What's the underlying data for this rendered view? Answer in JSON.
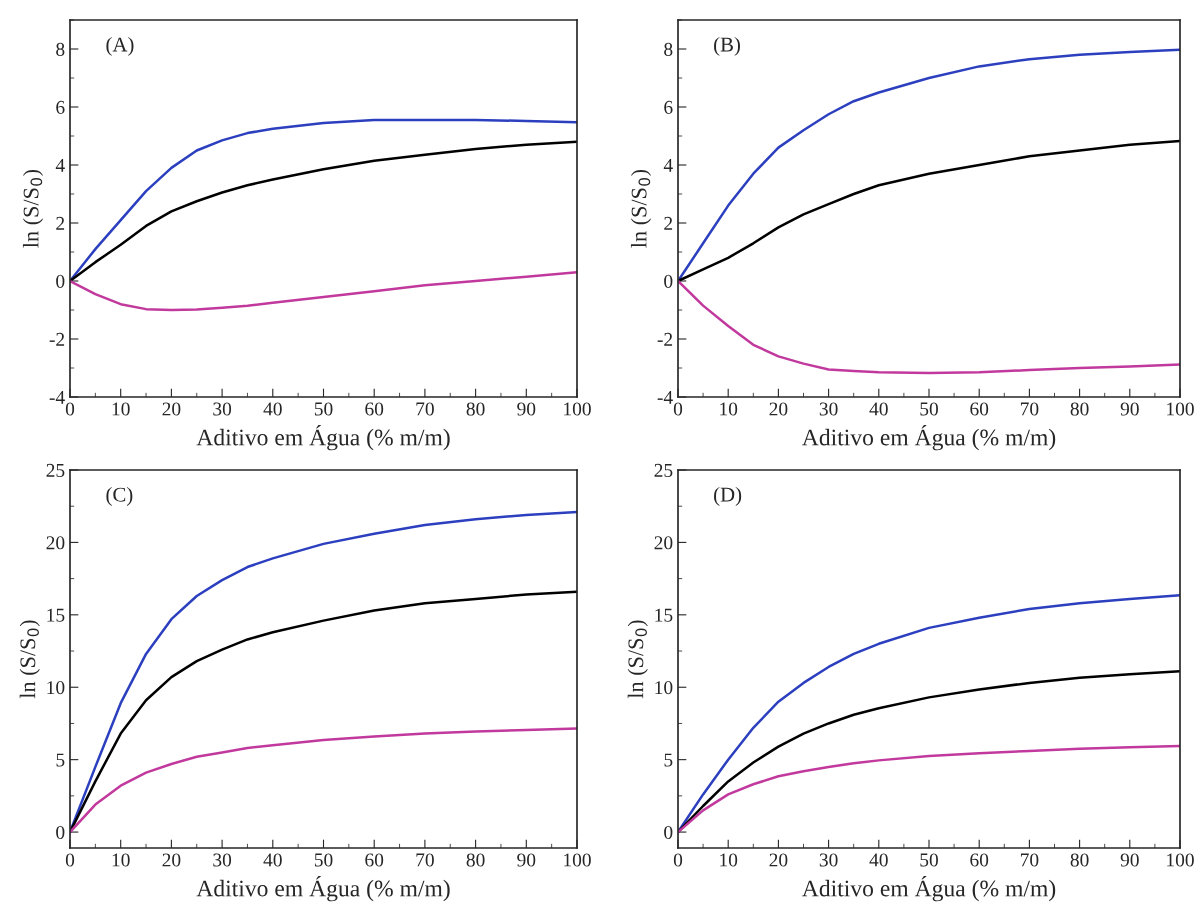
{
  "chart_data": [
    {
      "type": "line",
      "xlabel": "Aditivo em Água (% m/m)",
      "ylabel": "ln (S/S$_{0}$)",
      "annotations": [
        "(A)"
      ],
      "x": [
        0,
        5,
        10,
        15,
        20,
        25,
        30,
        35,
        40,
        50,
        60,
        70,
        80,
        90,
        100
      ],
      "xlim": [
        0,
        100
      ],
      "xticks": [
        0,
        10,
        20,
        30,
        40,
        50,
        60,
        70,
        80,
        90,
        100
      ],
      "ylim": [
        -4,
        9
      ],
      "yticks": [
        -4,
        -2,
        0,
        2,
        4,
        6,
        8
      ],
      "grid": false,
      "marker": "none",
      "line_style": "solid",
      "series": [
        {
          "color": "#2b3fbf",
          "values": [
            0,
            1.1,
            2.1,
            3.1,
            3.9,
            4.5,
            4.85,
            5.1,
            5.25,
            5.45,
            5.55,
            5.55,
            5.55,
            5.52,
            5.47
          ]
        },
        {
          "color": "#000000",
          "values": [
            0,
            0.65,
            1.25,
            1.9,
            2.4,
            2.75,
            3.05,
            3.3,
            3.5,
            3.85,
            4.15,
            4.35,
            4.55,
            4.7,
            4.8
          ]
        },
        {
          "color": "#c2399e",
          "values": [
            0,
            -0.45,
            -0.8,
            -0.97,
            -1.0,
            -0.98,
            -0.92,
            -0.85,
            -0.75,
            -0.55,
            -0.35,
            -0.15,
            0.0,
            0.15,
            0.3
          ]
        }
      ]
    },
    {
      "type": "line",
      "xlabel": "Aditivo em Água (% m/m)",
      "ylabel": "ln (S/S$_{0}$)",
      "annotations": [
        "(B)"
      ],
      "x": [
        0,
        5,
        10,
        15,
        20,
        25,
        30,
        35,
        40,
        50,
        60,
        70,
        80,
        90,
        100
      ],
      "xlim": [
        0,
        100
      ],
      "xticks": [
        0,
        10,
        20,
        30,
        40,
        50,
        60,
        70,
        80,
        90,
        100
      ],
      "ylim": [
        -4,
        9
      ],
      "yticks": [
        -4,
        -2,
        0,
        2,
        4,
        6,
        8
      ],
      "grid": false,
      "marker": "none",
      "line_style": "solid",
      "series": [
        {
          "color": "#2b3fbf",
          "values": [
            0,
            1.3,
            2.6,
            3.7,
            4.6,
            5.2,
            5.75,
            6.2,
            6.5,
            7.0,
            7.4,
            7.65,
            7.8,
            7.9,
            7.97
          ]
        },
        {
          "color": "#000000",
          "values": [
            0,
            0.4,
            0.8,
            1.3,
            1.85,
            2.3,
            2.65,
            3.0,
            3.3,
            3.7,
            4.0,
            4.3,
            4.5,
            4.7,
            4.83
          ]
        },
        {
          "color": "#c2399e",
          "values": [
            0,
            -0.85,
            -1.55,
            -2.2,
            -2.6,
            -2.85,
            -3.05,
            -3.1,
            -3.15,
            -3.17,
            -3.15,
            -3.07,
            -3.0,
            -2.95,
            -2.88
          ]
        }
      ]
    },
    {
      "type": "line",
      "xlabel": "Aditivo em Água (% m/m)",
      "ylabel": "ln (S/S$_{0}$)",
      "annotations": [
        "(C)"
      ],
      "x": [
        0,
        5,
        10,
        15,
        20,
        25,
        30,
        35,
        40,
        50,
        60,
        70,
        80,
        90,
        100
      ],
      "xlim": [
        0,
        100
      ],
      "xticks": [
        0,
        10,
        20,
        30,
        40,
        50,
        60,
        70,
        80,
        90,
        100
      ],
      "ylim": [
        -1.1,
        25
      ],
      "yticks": [
        0,
        5,
        10,
        15,
        20,
        25
      ],
      "grid": false,
      "marker": "none",
      "line_style": "solid",
      "series": [
        {
          "color": "#2b3fbf",
          "values": [
            0,
            4.5,
            8.9,
            12.3,
            14.7,
            16.3,
            17.4,
            18.3,
            18.9,
            19.9,
            20.6,
            21.2,
            21.6,
            21.9,
            22.1
          ]
        },
        {
          "color": "#000000",
          "values": [
            0,
            3.5,
            6.8,
            9.1,
            10.7,
            11.8,
            12.6,
            13.3,
            13.8,
            14.6,
            15.3,
            15.8,
            16.1,
            16.4,
            16.6
          ]
        },
        {
          "color": "#c2399e",
          "values": [
            0,
            1.9,
            3.2,
            4.1,
            4.7,
            5.2,
            5.5,
            5.8,
            6.0,
            6.35,
            6.6,
            6.8,
            6.95,
            7.05,
            7.15
          ]
        }
      ]
    },
    {
      "type": "line",
      "xlabel": "Aditivo em Água (% m/m)",
      "ylabel": "ln (S/S$_{0}$)",
      "annotations": [
        "(D)"
      ],
      "x": [
        0,
        5,
        10,
        15,
        20,
        25,
        30,
        35,
        40,
        50,
        60,
        70,
        80,
        90,
        100
      ],
      "xlim": [
        0,
        100
      ],
      "xticks": [
        0,
        10,
        20,
        30,
        40,
        50,
        60,
        70,
        80,
        90,
        100
      ],
      "ylim": [
        -1.1,
        25
      ],
      "yticks": [
        0,
        5,
        10,
        15,
        20,
        25
      ],
      "grid": false,
      "marker": "none",
      "line_style": "solid",
      "series": [
        {
          "color": "#2b3fbf",
          "values": [
            0,
            2.6,
            5.0,
            7.2,
            9.0,
            10.3,
            11.4,
            12.3,
            13.0,
            14.1,
            14.8,
            15.4,
            15.8,
            16.1,
            16.35
          ]
        },
        {
          "color": "#000000",
          "values": [
            0,
            1.8,
            3.5,
            4.8,
            5.9,
            6.8,
            7.5,
            8.1,
            8.55,
            9.3,
            9.85,
            10.3,
            10.65,
            10.9,
            11.1
          ]
        },
        {
          "color": "#c2399e",
          "values": [
            0,
            1.5,
            2.6,
            3.3,
            3.85,
            4.2,
            4.5,
            4.75,
            4.95,
            5.25,
            5.45,
            5.6,
            5.75,
            5.85,
            5.95
          ]
        }
      ]
    }
  ]
}
